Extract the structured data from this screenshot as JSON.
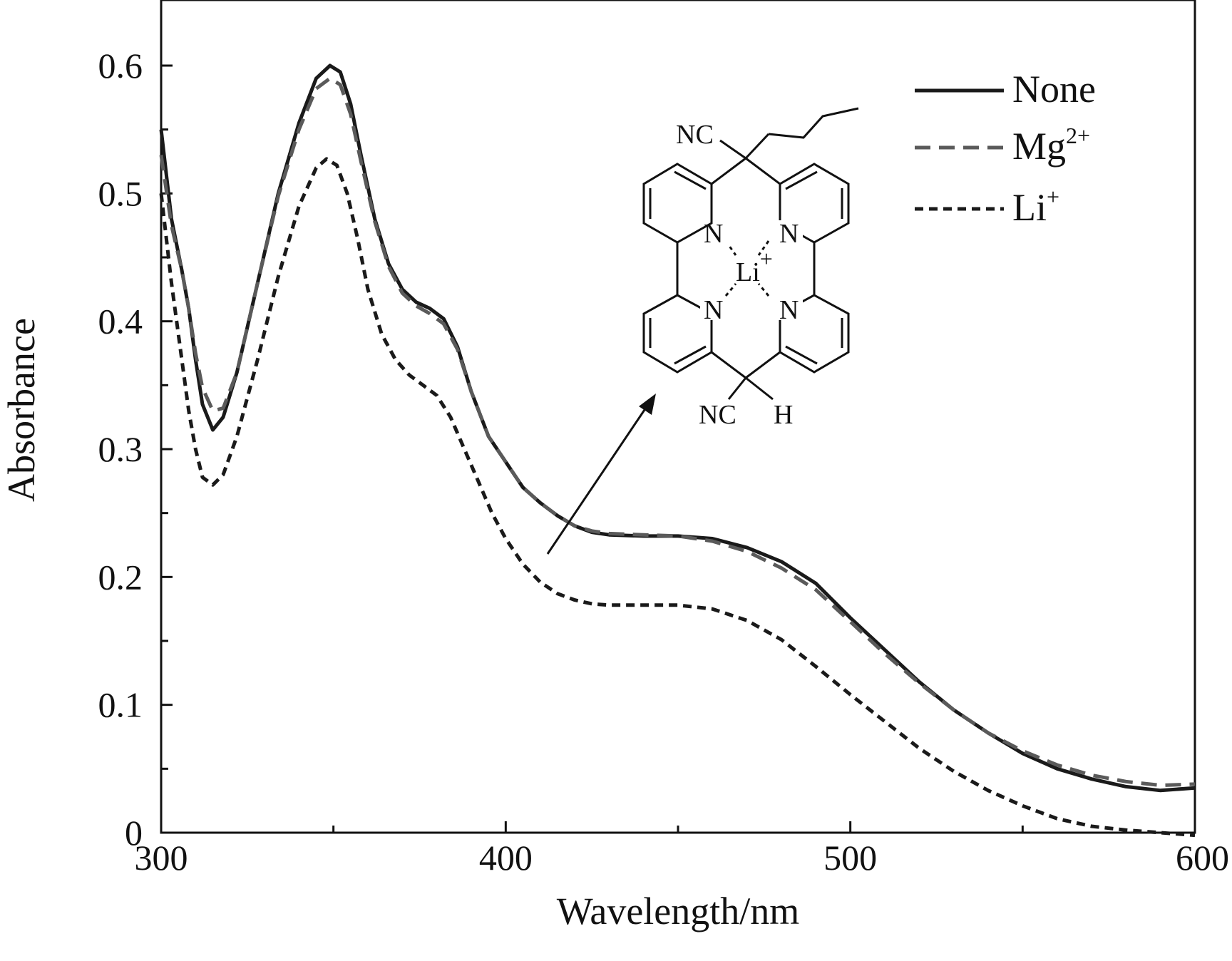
{
  "chart_data": {
    "type": "line",
    "title": "",
    "xlabel": "Wavelength/nm",
    "ylabel": "Absorbance",
    "xlim": [
      300,
      600
    ],
    "ylim": [
      0,
      0.65
    ],
    "x_ticks": [
      "300",
      "400",
      "500",
      "600"
    ],
    "y_ticks": [
      "0",
      "0.1",
      "0.2",
      "0.3",
      "0.4",
      "0.5",
      "0.6"
    ],
    "grid": false,
    "legend_position": "top-right",
    "series": [
      {
        "name": "None",
        "style": "solid",
        "color": "#1a1a1a",
        "points": [
          [
            300,
            0.55
          ],
          [
            303,
            0.48
          ],
          [
            306,
            0.44
          ],
          [
            308,
            0.41
          ],
          [
            310,
            0.37
          ],
          [
            312,
            0.335
          ],
          [
            315,
            0.315
          ],
          [
            318,
            0.325
          ],
          [
            322,
            0.36
          ],
          [
            328,
            0.43
          ],
          [
            334,
            0.5
          ],
          [
            340,
            0.555
          ],
          [
            345,
            0.59
          ],
          [
            349,
            0.6
          ],
          [
            352,
            0.595
          ],
          [
            355,
            0.57
          ],
          [
            358,
            0.53
          ],
          [
            362,
            0.48
          ],
          [
            366,
            0.445
          ],
          [
            370,
            0.425
          ],
          [
            374,
            0.415
          ],
          [
            378,
            0.41
          ],
          [
            382,
            0.402
          ],
          [
            386,
            0.38
          ],
          [
            390,
            0.345
          ],
          [
            395,
            0.31
          ],
          [
            400,
            0.29
          ],
          [
            405,
            0.27
          ],
          [
            410,
            0.258
          ],
          [
            415,
            0.248
          ],
          [
            420,
            0.24
          ],
          [
            425,
            0.235
          ],
          [
            430,
            0.233
          ],
          [
            440,
            0.232
          ],
          [
            450,
            0.232
          ],
          [
            460,
            0.23
          ],
          [
            470,
            0.223
          ],
          [
            480,
            0.212
          ],
          [
            490,
            0.195
          ],
          [
            500,
            0.168
          ],
          [
            510,
            0.143
          ],
          [
            520,
            0.118
          ],
          [
            530,
            0.096
          ],
          [
            540,
            0.078
          ],
          [
            550,
            0.062
          ],
          [
            560,
            0.05
          ],
          [
            570,
            0.042
          ],
          [
            580,
            0.036
          ],
          [
            590,
            0.033
          ],
          [
            600,
            0.035
          ]
        ]
      },
      {
        "name": "Mg2+",
        "style": "dashed",
        "color": "#5a5a5a",
        "points": [
          [
            300,
            0.53
          ],
          [
            303,
            0.475
          ],
          [
            306,
            0.44
          ],
          [
            308,
            0.41
          ],
          [
            310,
            0.375
          ],
          [
            312,
            0.348
          ],
          [
            315,
            0.33
          ],
          [
            318,
            0.332
          ],
          [
            322,
            0.36
          ],
          [
            328,
            0.43
          ],
          [
            334,
            0.498
          ],
          [
            340,
            0.55
          ],
          [
            345,
            0.582
          ],
          [
            349,
            0.59
          ],
          [
            352,
            0.585
          ],
          [
            355,
            0.562
          ],
          [
            358,
            0.525
          ],
          [
            362,
            0.478
          ],
          [
            366,
            0.443
          ],
          [
            370,
            0.422
          ],
          [
            374,
            0.412
          ],
          [
            378,
            0.406
          ],
          [
            382,
            0.398
          ],
          [
            386,
            0.378
          ],
          [
            390,
            0.345
          ],
          [
            395,
            0.31
          ],
          [
            400,
            0.29
          ],
          [
            405,
            0.27
          ],
          [
            410,
            0.258
          ],
          [
            415,
            0.248
          ],
          [
            420,
            0.24
          ],
          [
            425,
            0.236
          ],
          [
            430,
            0.234
          ],
          [
            440,
            0.233
          ],
          [
            450,
            0.232
          ],
          [
            460,
            0.228
          ],
          [
            470,
            0.22
          ],
          [
            480,
            0.207
          ],
          [
            490,
            0.19
          ],
          [
            500,
            0.165
          ],
          [
            510,
            0.14
          ],
          [
            520,
            0.117
          ],
          [
            530,
            0.096
          ],
          [
            540,
            0.078
          ],
          [
            550,
            0.064
          ],
          [
            560,
            0.053
          ],
          [
            570,
            0.045
          ],
          [
            580,
            0.04
          ],
          [
            590,
            0.037
          ],
          [
            600,
            0.038
          ]
        ]
      },
      {
        "name": "Li+",
        "style": "dotted",
        "color": "#1a1a1a",
        "points": [
          [
            300,
            0.5
          ],
          [
            303,
            0.43
          ],
          [
            306,
            0.37
          ],
          [
            308,
            0.33
          ],
          [
            310,
            0.3
          ],
          [
            312,
            0.278
          ],
          [
            315,
            0.272
          ],
          [
            318,
            0.28
          ],
          [
            322,
            0.31
          ],
          [
            328,
            0.37
          ],
          [
            334,
            0.435
          ],
          [
            340,
            0.49
          ],
          [
            345,
            0.52
          ],
          [
            348,
            0.527
          ],
          [
            351,
            0.522
          ],
          [
            354,
            0.5
          ],
          [
            357,
            0.465
          ],
          [
            360,
            0.425
          ],
          [
            364,
            0.39
          ],
          [
            368,
            0.37
          ],
          [
            372,
            0.358
          ],
          [
            376,
            0.35
          ],
          [
            380,
            0.342
          ],
          [
            384,
            0.325
          ],
          [
            388,
            0.3
          ],
          [
            392,
            0.275
          ],
          [
            396,
            0.25
          ],
          [
            400,
            0.23
          ],
          [
            405,
            0.21
          ],
          [
            410,
            0.196
          ],
          [
            415,
            0.187
          ],
          [
            420,
            0.182
          ],
          [
            425,
            0.179
          ],
          [
            430,
            0.178
          ],
          [
            440,
            0.178
          ],
          [
            450,
            0.178
          ],
          [
            460,
            0.175
          ],
          [
            470,
            0.166
          ],
          [
            480,
            0.151
          ],
          [
            490,
            0.13
          ],
          [
            500,
            0.108
          ],
          [
            510,
            0.087
          ],
          [
            520,
            0.066
          ],
          [
            530,
            0.048
          ],
          [
            540,
            0.033
          ],
          [
            550,
            0.021
          ],
          [
            560,
            0.011
          ],
          [
            570,
            0.005
          ],
          [
            580,
            0.002
          ],
          [
            590,
            0.0
          ],
          [
            600,
            -0.002
          ]
        ]
      }
    ],
    "legend": [
      {
        "label": "None",
        "superscript": ""
      },
      {
        "label": "Mg",
        "superscript": "2+"
      },
      {
        "label": "Li",
        "superscript": "+"
      }
    ],
    "inset_structure": {
      "atoms": {
        "nc_top": "NC",
        "nc_bottom": "NC",
        "h": "H",
        "n": "N",
        "li": "Li",
        "li_charge": "+"
      }
    }
  }
}
